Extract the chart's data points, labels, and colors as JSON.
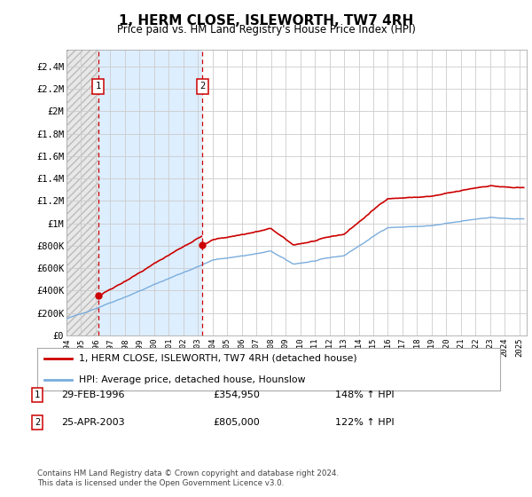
{
  "title": "1, HERM CLOSE, ISLEWORTH, TW7 4RH",
  "subtitle": "Price paid vs. HM Land Registry's House Price Index (HPI)",
  "legend_line1": "1, HERM CLOSE, ISLEWORTH, TW7 4RH (detached house)",
  "legend_line2": "HPI: Average price, detached house, Hounslow",
  "annotation1_date": "29-FEB-1996",
  "annotation1_price": "£354,950",
  "annotation1_hpi": "148% ↑ HPI",
  "annotation2_date": "25-APR-2003",
  "annotation2_price": "£805,000",
  "annotation2_hpi": "122% ↑ HPI",
  "footnote": "Contains HM Land Registry data © Crown copyright and database right 2024.\nThis data is licensed under the Open Government Licence v3.0.",
  "xmin": 1994.0,
  "xmax": 2025.5,
  "ymin": 0,
  "ymax": 2600000,
  "yticks": [
    0,
    200000,
    400000,
    600000,
    800000,
    1000000,
    1200000,
    1400000,
    1600000,
    1800000,
    2000000,
    2200000,
    2400000
  ],
  "ytick_labels": [
    "£0",
    "£200K",
    "£400K",
    "£600K",
    "£800K",
    "£1M",
    "£1.2M",
    "£1.4M",
    "£1.6M",
    "£1.8M",
    "£2M",
    "£2.2M",
    "£2.4M"
  ],
  "xticks": [
    1994,
    1995,
    1996,
    1997,
    1998,
    1999,
    2000,
    2001,
    2002,
    2003,
    2004,
    2005,
    2006,
    2007,
    2008,
    2009,
    2010,
    2011,
    2012,
    2013,
    2014,
    2015,
    2016,
    2017,
    2018,
    2019,
    2020,
    2021,
    2022,
    2023,
    2024,
    2025
  ],
  "transaction1_x": 1996.16,
  "transaction1_y": 354950,
  "transaction2_x": 2003.31,
  "transaction2_y": 805000,
  "red_line_color": "#cc0000",
  "blue_line_color": "#7aaddd",
  "grid_color": "#cccccc",
  "background_color": "#ffffff",
  "plot_bg_color": "#ffffff",
  "hatch_bg_color": "#ddeeff"
}
